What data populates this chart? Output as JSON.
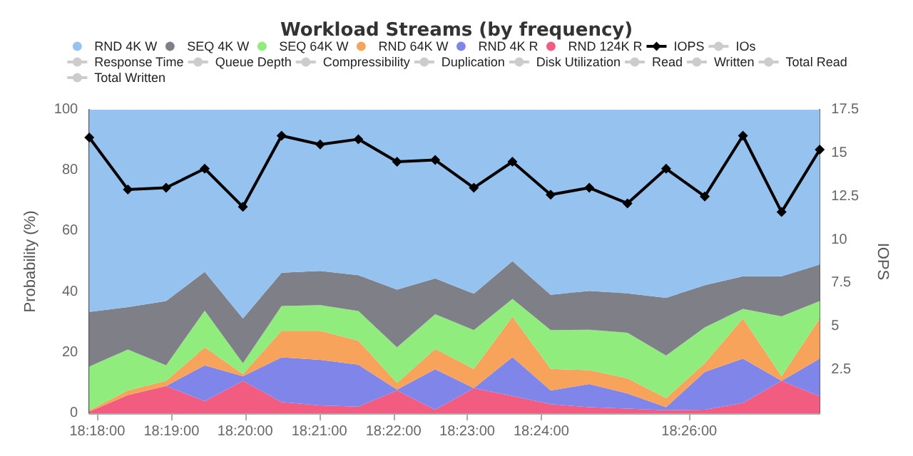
{
  "chart_data": {
    "type": "area",
    "title": "Workload Streams (by frequency)",
    "ylabel": "Probability (%)",
    "y2label": "IOPS",
    "x": [
      18.2982,
      18.3069,
      18.3155,
      18.3242,
      18.3328,
      18.3415,
      18.3502,
      18.3588,
      18.3675,
      18.3761,
      18.3848,
      18.3935,
      18.4021,
      18.4108,
      18.4194,
      18.4281,
      18.4368,
      18.4454,
      18.4541,
      18.4627
    ],
    "xlim": [
      18.2982,
      18.4627
    ],
    "xticks": [
      {
        "value": 18.3,
        "label": "18:18:00"
      },
      {
        "value": 18.3167,
        "label": "18:19:00"
      },
      {
        "value": 18.3333,
        "label": "18:20:00"
      },
      {
        "value": 18.35,
        "label": "18:21:00"
      },
      {
        "value": 18.3667,
        "label": "18:22:00"
      },
      {
        "value": 18.3833,
        "label": "18:23:00"
      },
      {
        "value": 18.4,
        "label": "18:24:00"
      },
      {
        "value": 18.4333,
        "label": "18:26:00"
      }
    ],
    "ylim": [
      0,
      100
    ],
    "yticks": [
      0,
      20,
      40,
      60,
      80,
      100
    ],
    "y2lim": [
      0,
      17.5
    ],
    "y2ticks": [
      2.5,
      5,
      7.5,
      10,
      12.5,
      15,
      17.5
    ],
    "stacked": true,
    "grid": "y",
    "legend": "top",
    "series": [
      {
        "name": "RND 124K R",
        "color": "#f15c80",
        "values": [
          0.5,
          6,
          9,
          4,
          10.7,
          3.7,
          2.6,
          2.2,
          7.5,
          1.2,
          8.3,
          5.7,
          3,
          2,
          1.5,
          1,
          1.2,
          3.4,
          10.7,
          5.6
        ]
      },
      {
        "name": "RND 4K R",
        "color": "#8085e9",
        "values": [
          0,
          0,
          0,
          11.8,
          1.5,
          14.7,
          15,
          13.8,
          0.3,
          13.3,
          0,
          12.8,
          4.5,
          7.6,
          5,
          1,
          12.4,
          14.6,
          0,
          12.4
        ]
      },
      {
        "name": "RND 64K W",
        "color": "#f7a35c",
        "values": [
          0.5,
          1.5,
          1.7,
          5.9,
          0.7,
          8.8,
          9.6,
          7.9,
          2.2,
          6.7,
          6.3,
          13.3,
          7.1,
          4.6,
          5,
          3,
          2.9,
          13.2,
          1.5,
          13.2
        ]
      },
      {
        "name": "SEQ 64K W",
        "color": "#90ed7d",
        "values": [
          14.4,
          13.5,
          5.1,
          12.1,
          3.6,
          8.1,
          8.4,
          9.8,
          11.7,
          11.4,
          12.8,
          5.9,
          12.8,
          13.3,
          15,
          14,
          11.8,
          3.2,
          19.7,
          5.8
        ]
      },
      {
        "name": "SEQ 4K W",
        "color": "#7f7f87",
        "values": [
          18,
          14,
          21.2,
          12.8,
          14.7,
          11,
          11.3,
          11.8,
          19,
          11.8,
          12,
          12.4,
          11.6,
          12.8,
          13,
          19,
          13.9,
          10.7,
          13.2,
          12
        ]
      },
      {
        "name": "RND 4K W",
        "color": "#95c2ee",
        "values": [
          66.6,
          65,
          63,
          53.4,
          68.8,
          53.7,
          53.1,
          54.5,
          59.3,
          55.6,
          60.6,
          49.9,
          61,
          59.7,
          60.5,
          62,
          57.8,
          54.9,
          54.9,
          51
        ]
      },
      {
        "name": "IOPS",
        "type": "line",
        "axis": "y2",
        "color": "#000000",
        "marker": "diamond",
        "values": [
          15.9,
          12.9,
          13.0,
          14.1,
          11.9,
          16.0,
          15.5,
          15.8,
          14.5,
          14.6,
          13.0,
          14.5,
          12.6,
          13.0,
          12.1,
          14.1,
          12.5,
          16.0,
          11.6,
          15.2
        ]
      },
      {
        "name": "IOs",
        "type": "line",
        "color": "#cccccc",
        "values": [
          null,
          null,
          null,
          null,
          null,
          null,
          null,
          null,
          null,
          null,
          null,
          null,
          null,
          null,
          null,
          null,
          null,
          null,
          null,
          null
        ]
      },
      {
        "name": "Response Time",
        "type": "line",
        "color": "#cccccc",
        "values": [
          null,
          null,
          null,
          null,
          null,
          null,
          null,
          null,
          null,
          null,
          null,
          null,
          null,
          null,
          null,
          null,
          null,
          null,
          null,
          null
        ]
      },
      {
        "name": "Queue Depth",
        "type": "line",
        "color": "#cccccc",
        "values": [
          null,
          null,
          null,
          null,
          null,
          null,
          null,
          null,
          null,
          null,
          null,
          null,
          null,
          null,
          null,
          null,
          null,
          null,
          null,
          null
        ]
      },
      {
        "name": "Compressibility",
        "type": "line",
        "color": "#cccccc",
        "values": [
          null,
          null,
          null,
          null,
          null,
          null,
          null,
          null,
          null,
          null,
          null,
          null,
          null,
          null,
          null,
          null,
          null,
          null,
          null,
          null
        ]
      },
      {
        "name": "Duplication",
        "type": "line",
        "color": "#cccccc",
        "values": [
          null,
          null,
          null,
          null,
          null,
          null,
          null,
          null,
          null,
          null,
          null,
          null,
          null,
          null,
          null,
          null,
          null,
          null,
          null,
          null
        ]
      },
      {
        "name": "Disk Utilization",
        "type": "line",
        "color": "#cccccc",
        "values": [
          null,
          null,
          null,
          null,
          null,
          null,
          null,
          null,
          null,
          null,
          null,
          null,
          null,
          null,
          null,
          null,
          null,
          null,
          null,
          null
        ]
      },
      {
        "name": "Read",
        "type": "line",
        "color": "#cccccc",
        "values": [
          null,
          null,
          null,
          null,
          null,
          null,
          null,
          null,
          null,
          null,
          null,
          null,
          null,
          null,
          null,
          null,
          null,
          null,
          null,
          null
        ]
      },
      {
        "name": "Written",
        "type": "line",
        "color": "#cccccc",
        "values": [
          null,
          null,
          null,
          null,
          null,
          null,
          null,
          null,
          null,
          null,
          null,
          null,
          null,
          null,
          null,
          null,
          null,
          null,
          null,
          null
        ]
      },
      {
        "name": "Total Read",
        "type": "line",
        "color": "#cccccc",
        "values": [
          null,
          null,
          null,
          null,
          null,
          null,
          null,
          null,
          null,
          null,
          null,
          null,
          null,
          null,
          null,
          null,
          null,
          null,
          null,
          null
        ]
      },
      {
        "name": "Total Written",
        "type": "line",
        "color": "#cccccc",
        "values": [
          null,
          null,
          null,
          null,
          null,
          null,
          null,
          null,
          null,
          null,
          null,
          null,
          null,
          null,
          null,
          null,
          null,
          null,
          null,
          null
        ]
      }
    ]
  }
}
